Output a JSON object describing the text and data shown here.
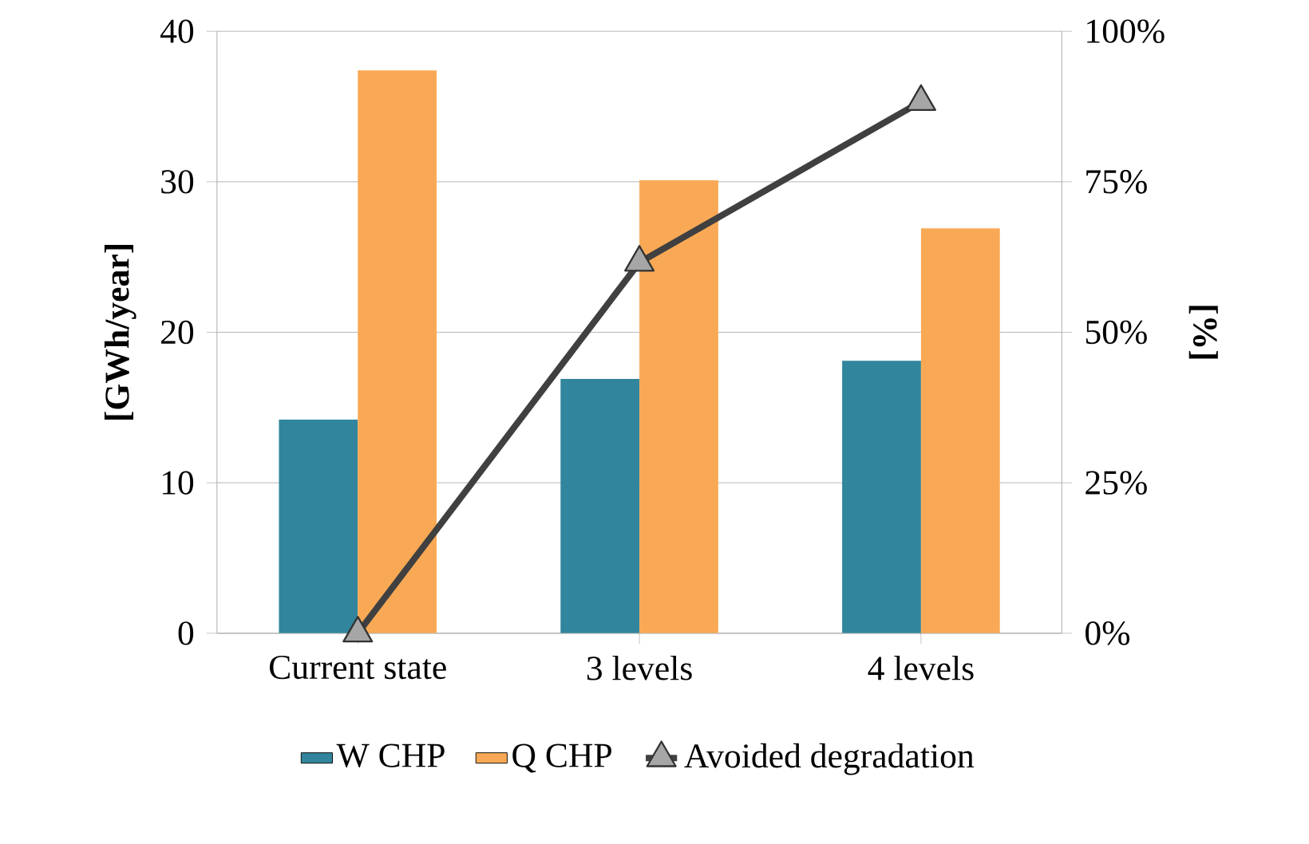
{
  "chart_data": {
    "type": "bar",
    "categories": [
      "Current state",
      "3 levels",
      "4 levels"
    ],
    "ylabel": "[GWh/year]",
    "y2label": "[%]",
    "series": [
      {
        "name": "W CHP",
        "color": "#31859c",
        "values": [
          14.2,
          16.9,
          18.1
        ]
      },
      {
        "name": "Q CHP",
        "color": "#f9a955",
        "values": [
          37.4,
          30.1,
          26.9
        ]
      },
      {
        "name": "Avoided degradation",
        "type": "line",
        "axis": "y2",
        "color": "#404040",
        "marker": "triangle",
        "values": [
          0,
          61.6,
          88.3
        ]
      }
    ],
    "ylim": [
      0,
      40
    ],
    "yticks": [
      0,
      10,
      20,
      30,
      40
    ],
    "y2lim": [
      0,
      100
    ],
    "y2ticks": [
      {
        "value": 0,
        "label": "0%"
      },
      {
        "value": 25,
        "label": "25%"
      },
      {
        "value": 50,
        "label": "50%"
      },
      {
        "value": 75,
        "label": "75%"
      },
      {
        "value": 100,
        "label": "100%"
      }
    ],
    "grid": "y",
    "legend": "bottom"
  }
}
